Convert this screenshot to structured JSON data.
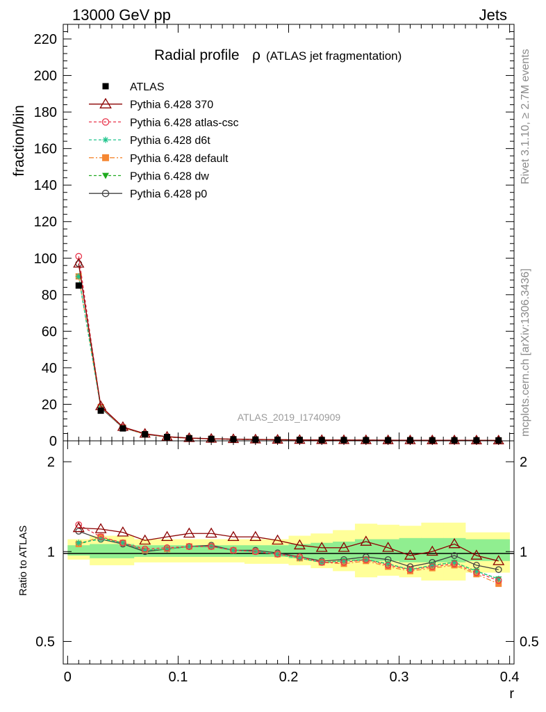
{
  "header": {
    "left": "13000 GeV pp",
    "right": "Jets"
  },
  "side_texts": {
    "rivet": "Rivet 3.1.10, ≥ 2.7M events",
    "mcplots": "mcplots.cern.ch [arXiv:1306.3436]"
  },
  "colors": {
    "ATLAS": "#000000",
    "370": "#8b0000",
    "atlas-csc": "#e8334a",
    "d6t": "#1ec48c",
    "default": "#f58732",
    "dw": "#1faa1f",
    "p0": "#404040",
    "band_inner": "#90ee90",
    "band_outer": "#ffff99"
  },
  "chart_data": [
    {
      "type": "line",
      "panel": "main",
      "title": "Radial profile",
      "title_symbol": "ρ",
      "title_suffix": "(ATLAS jet fragmentation)",
      "ylabel": "fraction/bin",
      "watermark": "ATLAS_2019_I1740909",
      "ylim": [
        0,
        228
      ],
      "xlim": [
        -0.004,
        0.404
      ],
      "yticks": [
        0,
        20,
        40,
        60,
        80,
        100,
        120,
        140,
        160,
        180,
        200,
        220
      ],
      "x": [
        0.01,
        0.03,
        0.05,
        0.07,
        0.09,
        0.11,
        0.13,
        0.15,
        0.17,
        0.19,
        0.21,
        0.23,
        0.25,
        0.27,
        0.29,
        0.31,
        0.33,
        0.35,
        0.37,
        0.39
      ],
      "series": [
        {
          "name": "ATLAS",
          "marker": "square",
          "line": "none",
          "values": [
            85,
            16.5,
            6.8,
            3.6,
            2.1,
            1.4,
            1.05,
            0.85,
            0.7,
            0.6,
            0.5,
            0.45,
            0.42,
            0.38,
            0.35,
            0.33,
            0.31,
            0.3,
            0.28,
            0.26
          ]
        },
        {
          "name": "Pythia 6.428 370",
          "marker": "triangle-open",
          "line": "solid",
          "values": [
            97,
            19,
            7.6,
            3.9,
            2.3,
            1.55,
            1.15,
            0.95,
            0.78,
            0.64,
            0.53,
            0.46,
            0.43,
            0.41,
            0.36,
            0.32,
            0.31,
            0.32,
            0.27,
            0.24
          ]
        },
        {
          "name": "Pythia 6.428 atlas-csc",
          "marker": "circle-open",
          "line": "dashed",
          "values": [
            101,
            18.5,
            7.4,
            3.7,
            2.15,
            1.45,
            1.07,
            0.85,
            0.7,
            0.59,
            0.48,
            0.42,
            0.39,
            0.36,
            0.32,
            0.28,
            0.28,
            0.27,
            0.24,
            0.21
          ]
        },
        {
          "name": "Pythia 6.428 d6t",
          "marker": "star",
          "line": "dashed",
          "values": [
            90,
            18.2,
            7.3,
            3.6,
            2.1,
            1.45,
            1.07,
            0.86,
            0.7,
            0.59,
            0.48,
            0.41,
            0.39,
            0.36,
            0.32,
            0.29,
            0.28,
            0.28,
            0.24,
            0.21
          ]
        },
        {
          "name": "Pythia 6.428 default",
          "marker": "square",
          "line": "dashdot",
          "values": [
            90,
            18.5,
            7.3,
            3.6,
            2.1,
            1.45,
            1.07,
            0.86,
            0.7,
            0.59,
            0.48,
            0.41,
            0.38,
            0.35,
            0.31,
            0.28,
            0.27,
            0.27,
            0.23,
            0.2
          ]
        },
        {
          "name": "Pythia 6.428 dw",
          "marker": "triangle-down",
          "line": "dashed",
          "values": [
            90,
            18.3,
            7.3,
            3.6,
            2.1,
            1.45,
            1.07,
            0.86,
            0.7,
            0.59,
            0.48,
            0.41,
            0.39,
            0.35,
            0.32,
            0.29,
            0.28,
            0.27,
            0.24,
            0.21
          ]
        },
        {
          "name": "Pythia 6.428 p0",
          "marker": "circle-open",
          "line": "solid",
          "values": [
            97,
            18,
            7.2,
            3.6,
            2.15,
            1.45,
            1.09,
            0.86,
            0.71,
            0.6,
            0.48,
            0.42,
            0.4,
            0.37,
            0.33,
            0.3,
            0.29,
            0.29,
            0.25,
            0.23
          ]
        }
      ]
    },
    {
      "type": "line",
      "panel": "ratio",
      "ylabel": "Ratio to ATLAS",
      "xlabel": "r",
      "scale": "log",
      "ylim": [
        0.42,
        2.35
      ],
      "yticks": [
        0.5,
        1,
        2
      ],
      "xticks": [
        0,
        0.1,
        0.2,
        0.3,
        0.4
      ],
      "x": [
        0.01,
        0.03,
        0.05,
        0.07,
        0.09,
        0.11,
        0.13,
        0.15,
        0.17,
        0.19,
        0.21,
        0.23,
        0.25,
        0.27,
        0.29,
        0.31,
        0.33,
        0.35,
        0.37,
        0.39
      ],
      "band_inner": [
        [
          0.97,
          1.05
        ],
        [
          0.95,
          1.06
        ],
        [
          0.95,
          1.06
        ],
        [
          0.96,
          1.05
        ],
        [
          0.96,
          1.05
        ],
        [
          0.96,
          1.05
        ],
        [
          0.96,
          1.05
        ],
        [
          0.96,
          1.05
        ],
        [
          0.96,
          1.05
        ],
        [
          0.96,
          1.05
        ],
        [
          0.95,
          1.06
        ],
        [
          0.94,
          1.07
        ],
        [
          0.94,
          1.08
        ],
        [
          0.93,
          1.1
        ],
        [
          0.93,
          1.1
        ],
        [
          0.92,
          1.11
        ],
        [
          0.92,
          1.11
        ],
        [
          0.92,
          1.11
        ],
        [
          0.93,
          1.1
        ],
        [
          0.93,
          1.1
        ]
      ],
      "band_outer": [
        [
          0.94,
          1.1
        ],
        [
          0.9,
          1.13
        ],
        [
          0.9,
          1.13
        ],
        [
          0.92,
          1.1
        ],
        [
          0.92,
          1.1
        ],
        [
          0.92,
          1.1
        ],
        [
          0.92,
          1.1
        ],
        [
          0.92,
          1.1
        ],
        [
          0.91,
          1.1
        ],
        [
          0.91,
          1.1
        ],
        [
          0.9,
          1.13
        ],
        [
          0.88,
          1.15
        ],
        [
          0.86,
          1.18
        ],
        [
          0.82,
          1.24
        ],
        [
          0.83,
          1.23
        ],
        [
          0.82,
          1.22
        ],
        [
          0.8,
          1.25
        ],
        [
          0.8,
          1.25
        ],
        [
          0.85,
          1.16
        ],
        [
          0.85,
          1.16
        ]
      ],
      "series": [
        {
          "name": "Pythia 6.428 370",
          "values": [
            1.2,
            1.19,
            1.16,
            1.09,
            1.12,
            1.15,
            1.15,
            1.12,
            1.12,
            1.09,
            1.05,
            1.03,
            1.03,
            1.08,
            1.03,
            0.97,
            1.0,
            1.06,
            0.97,
            0.93
          ]
        },
        {
          "name": "Pythia 6.428 atlas-csc",
          "values": [
            1.23,
            1.12,
            1.07,
            1.02,
            1.03,
            1.04,
            1.04,
            1.01,
            1.0,
            0.98,
            0.96,
            0.92,
            0.92,
            0.94,
            0.9,
            0.87,
            0.89,
            0.91,
            0.85,
            0.8
          ]
        },
        {
          "name": "Pythia 6.428 d6t",
          "values": [
            1.07,
            1.1,
            1.07,
            1.01,
            1.02,
            1.04,
            1.04,
            1.01,
            1.0,
            0.98,
            0.95,
            0.92,
            0.93,
            0.94,
            0.91,
            0.87,
            0.9,
            0.92,
            0.86,
            0.81
          ]
        },
        {
          "name": "Pythia 6.428 default",
          "values": [
            1.06,
            1.12,
            1.07,
            1.01,
            1.02,
            1.04,
            1.04,
            1.01,
            1.0,
            0.98,
            0.95,
            0.92,
            0.91,
            0.93,
            0.89,
            0.86,
            0.88,
            0.9,
            0.84,
            0.78
          ]
        },
        {
          "name": "Pythia 6.428 dw",
          "values": [
            1.06,
            1.11,
            1.07,
            1.01,
            1.02,
            1.04,
            1.04,
            1.01,
            1.0,
            0.98,
            0.95,
            0.92,
            0.93,
            0.94,
            0.91,
            0.87,
            0.9,
            0.92,
            0.86,
            0.81
          ]
        },
        {
          "name": "Pythia 6.428 p0",
          "values": [
            1.17,
            1.1,
            1.06,
            1.0,
            1.02,
            1.04,
            1.05,
            1.01,
            1.01,
            0.99,
            0.96,
            0.93,
            0.94,
            0.96,
            0.94,
            0.89,
            0.92,
            0.97,
            0.9,
            0.87
          ]
        }
      ]
    }
  ]
}
